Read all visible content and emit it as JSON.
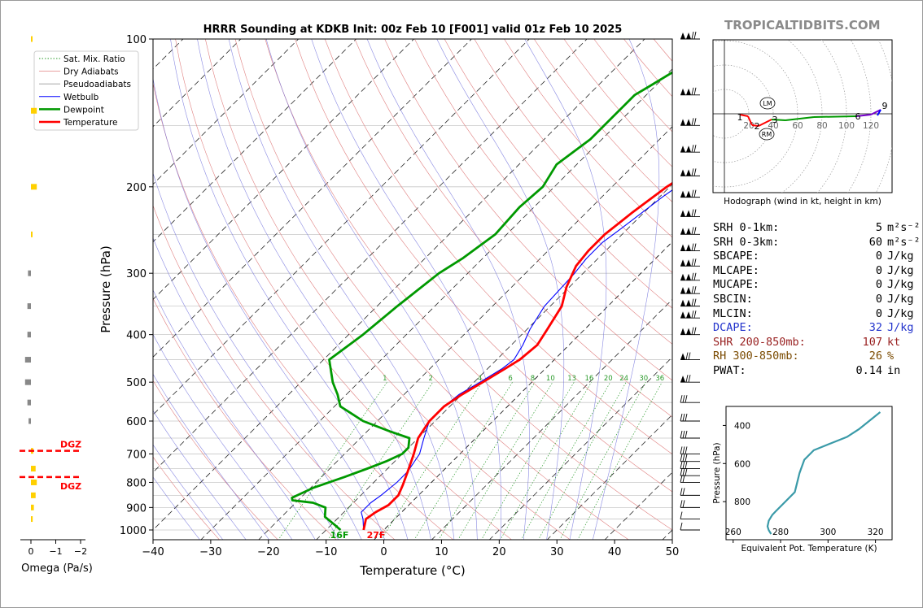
{
  "brand": "TROPICALTIDBITS.COM",
  "chart_data": [
    {
      "type": "line",
      "title": "HRRR Sounding at KDKB Init: 00z Feb 10 [F001] valid 01z Feb 10 2025",
      "xlabel": "Temperature (°C)",
      "ylabel": "Pressure (hPa)",
      "xlim": [
        -40,
        50
      ],
      "ylim": [
        1050,
        100
      ],
      "yscale": "log",
      "xticks": [
        -40,
        -30,
        -20,
        -10,
        0,
        10,
        20,
        30,
        40,
        50
      ],
      "xtick_labels": [
        "−40",
        "−30",
        "−20",
        "−10",
        "0",
        "10",
        "20",
        "30",
        "40",
        "50"
      ],
      "yticks": [
        100,
        200,
        300,
        400,
        500,
        600,
        700,
        800,
        900,
        1000
      ],
      "grid": true,
      "legend_position": "top-left",
      "legend": [
        "Sat. Mix. Ratio",
        "Dry Adiabats",
        "Pseudoadiabats",
        "Wetbulb",
        "Dewpoint",
        "Temperature"
      ],
      "mixing_ratio_labels": [
        "1",
        "2",
        "4",
        "6",
        "8",
        "10",
        "13",
        "16",
        "20",
        "24",
        "30",
        "36"
      ],
      "surface_labels": {
        "dewpoint": "16F",
        "temperature": "27F"
      },
      "series": [
        {
          "name": "Temperature",
          "color": "#ff0000",
          "x": [
            -3.5,
            -5,
            -4.5,
            -3.5,
            -3.5,
            -4.5,
            -6,
            -8,
            -10,
            -11,
            -11,
            -10,
            -8.5,
            -7,
            -6,
            -5.5,
            -6.5,
            -8,
            -10.5,
            -12.5,
            -13,
            -13,
            -12,
            -10.5,
            -8.5,
            -6.5,
            -3.5,
            -1,
            1,
            2,
            3,
            4.5
          ],
          "y": [
            1000,
            950,
            920,
            890,
            850,
            810,
            760,
            700,
            650,
            600,
            560,
            530,
            500,
            470,
            450,
            420,
            390,
            350,
            320,
            290,
            270,
            250,
            225,
            200,
            180,
            155,
            140,
            125,
            115,
            110,
            105,
            100
          ]
        },
        {
          "name": "Dewpoint",
          "color": "#009900",
          "x": [
            -7.5,
            -9.5,
            -12.5,
            -14,
            -17,
            -21,
            -21.5,
            -19.5,
            -16,
            -13.5,
            -11.5,
            -10,
            -10,
            -11.5,
            -16,
            -22.5,
            -29,
            -31.5,
            -34.5,
            -39,
            -37.5,
            -36.5,
            -35,
            -33.5,
            -32,
            -32.5,
            -32,
            -33.5,
            -32,
            -32,
            -32,
            -31,
            -29,
            -27,
            -25
          ],
          "y": [
            1000,
            975,
            940,
            900,
            880,
            870,
            860,
            820,
            780,
            750,
            725,
            700,
            680,
            650,
            630,
            600,
            560,
            530,
            500,
            450,
            400,
            350,
            300,
            280,
            250,
            220,
            200,
            180,
            160,
            140,
            130,
            125,
            115,
            107,
            100
          ]
        },
        {
          "name": "Wetbulb",
          "color": "#0000ff",
          "x": [
            -3.5,
            -5.5,
            -7,
            -7,
            -6.5,
            -6,
            -6,
            -7,
            -9,
            -11,
            -11,
            -10.5,
            -9,
            -7.5,
            -7,
            -8,
            -9.5,
            -11,
            -11.5,
            -12,
            -12,
            -11,
            -9.5,
            -8,
            -6.5,
            -4.5,
            -2,
            0,
            1,
            2.5,
            4
          ],
          "y": [
            1000,
            950,
            920,
            880,
            850,
            800,
            760,
            700,
            650,
            600,
            560,
            530,
            500,
            470,
            450,
            420,
            390,
            350,
            300,
            280,
            260,
            240,
            210,
            190,
            170,
            150,
            140,
            125,
            115,
            108,
            100
          ]
        }
      ]
    },
    {
      "type": "bar",
      "xlabel": "Omega (Pa/s)",
      "xlim": [
        0.2,
        -2.2
      ],
      "xticks": [
        0,
        -1,
        -2
      ],
      "xtick_labels": [
        "0",
        "−1",
        "−2"
      ],
      "dgz_label": "DGZ",
      "dgz_pressures": [
        690,
        780
      ]
    },
    {
      "type": "line",
      "title": "Hodograph (wind in kt, height in km)",
      "ring_labels": [
        "20",
        "40",
        "60",
        "80",
        "100",
        "120"
      ],
      "height_labels": [
        "1",
        "2",
        "3",
        "6",
        "9"
      ],
      "storm_motion_labels": [
        "LM",
        "RM"
      ]
    },
    {
      "type": "line",
      "xlabel": "Equivalent Pot. Temperature (K)",
      "ylabel": "Pressure (hPa)",
      "xlim": [
        257,
        327
      ],
      "xticks": [
        260,
        280,
        300,
        320
      ],
      "yticks": [
        400,
        600,
        800
      ],
      "series": [
        {
          "color": "#3a9aa8",
          "x": [
            276,
            275,
            274.5,
            275,
            276.5,
            278,
            282,
            286,
            287,
            288,
            290,
            294,
            302,
            308,
            313,
            318,
            322
          ],
          "y": [
            970,
            950,
            930,
            900,
            870,
            850,
            800,
            750,
            700,
            650,
            580,
            530,
            490,
            460,
            420,
            370,
            330
          ]
        }
      ]
    }
  ],
  "indices": [
    {
      "label": "SRH 0-1km:",
      "value": "5",
      "unit": "m²s⁻²",
      "color": "#000000"
    },
    {
      "label": "SRH 0-3km:",
      "value": "60",
      "unit": "m²s⁻²",
      "color": "#000000"
    },
    {
      "label": "SBCAPE:",
      "value": "0",
      "unit": "J/kg",
      "color": "#000000"
    },
    {
      "label": "MLCAPE:",
      "value": "0",
      "unit": "J/kg",
      "color": "#000000"
    },
    {
      "label": "MUCAPE:",
      "value": "0",
      "unit": "J/kg",
      "color": "#000000"
    },
    {
      "label": "SBCIN:",
      "value": "0",
      "unit": "J/kg",
      "color": "#000000"
    },
    {
      "label": "MLCIN:",
      "value": "0",
      "unit": "J/kg",
      "color": "#000000"
    },
    {
      "label": "DCAPE:",
      "value": "32",
      "unit": "J/kg",
      "color": "#2233cc"
    },
    {
      "label": "SHR 200-850mb:",
      "value": "107",
      "unit": "kt",
      "color": "#992222"
    },
    {
      "label": "RH 300-850mb:",
      "value": "26",
      "unit": "%",
      "color": "#7a4a00"
    },
    {
      "label": "PWAT:",
      "value": "0.14",
      "unit": "in",
      "color": "#000000"
    }
  ]
}
